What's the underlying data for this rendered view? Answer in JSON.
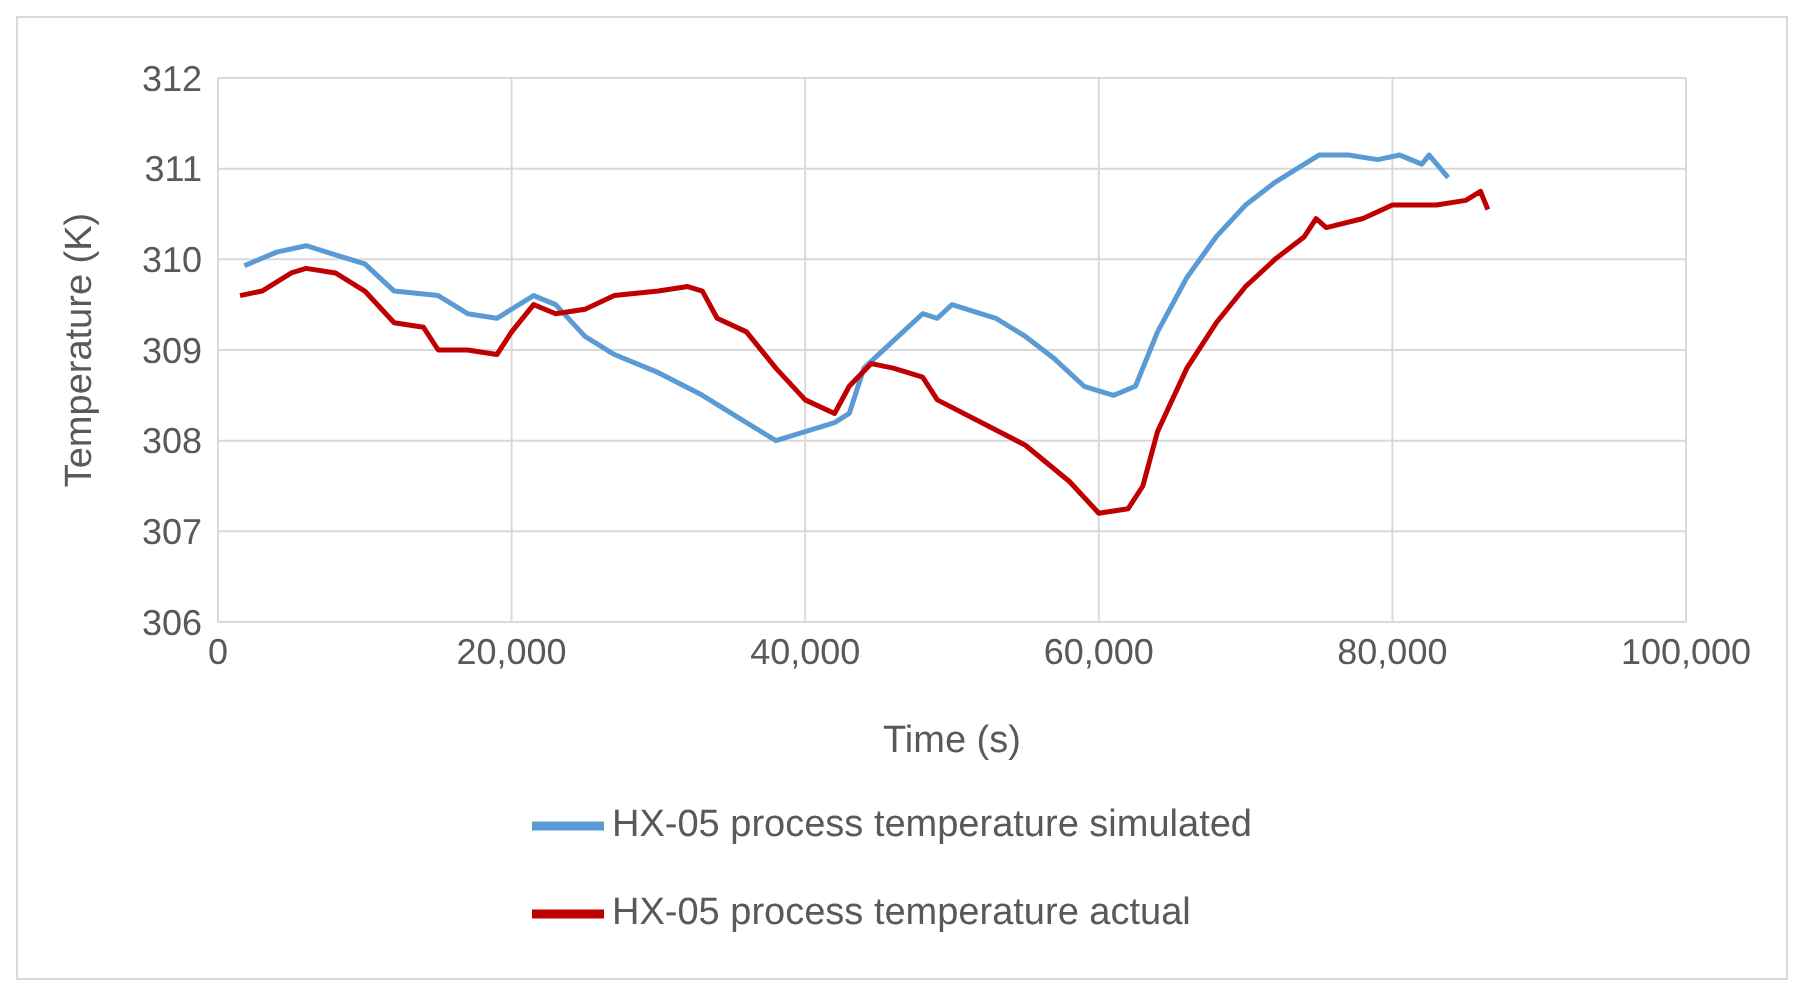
{
  "chart_data": {
    "type": "line",
    "xlabel": "Time (s)",
    "ylabel": "Temperature (K)",
    "xlim": [
      0,
      100000
    ],
    "xticks": [
      {
        "value": 0,
        "label": "0"
      },
      {
        "value": 20000,
        "label": "20,000"
      },
      {
        "value": 40000,
        "label": "40,000"
      },
      {
        "value": 60000,
        "label": "60,000"
      },
      {
        "value": 80000,
        "label": "80,000"
      },
      {
        "value": 100000,
        "label": "100,000"
      }
    ],
    "ylim": [
      306,
      312
    ],
    "yticks": [
      306,
      307,
      308,
      309,
      310,
      311,
      312
    ],
    "grid": true,
    "legend": "bottom",
    "marker": "none",
    "line_style": "solid",
    "series": [
      {
        "name": "HX-05 process temperature simulated",
        "color": "#5b9bd5",
        "x": [
          1800,
          4000,
          6000,
          8000,
          10000,
          12000,
          15000,
          17000,
          19000,
          21500,
          23000,
          25000,
          27000,
          30000,
          33000,
          36000,
          38000,
          40000,
          42000,
          43000,
          44000,
          46000,
          48000,
          49000,
          50000,
          53000,
          55000,
          57000,
          59000,
          61000,
          62500,
          64000,
          66000,
          68000,
          70000,
          72000,
          74000,
          75000,
          77000,
          79000,
          80500,
          82000,
          82500,
          83800
        ],
        "values": [
          309.93,
          310.08,
          310.15,
          310.05,
          309.95,
          309.65,
          309.6,
          309.4,
          309.35,
          309.6,
          309.5,
          309.15,
          308.95,
          308.75,
          308.5,
          308.2,
          308.0,
          308.1,
          308.2,
          308.3,
          308.8,
          309.1,
          309.4,
          309.35,
          309.5,
          309.35,
          309.15,
          308.9,
          308.6,
          308.5,
          308.6,
          309.2,
          309.8,
          310.25,
          310.6,
          310.85,
          311.05,
          311.15,
          311.15,
          311.1,
          311.15,
          311.05,
          311.15,
          310.9
        ]
      },
      {
        "name": "HX-05 process temperature actual",
        "color": "#c00000",
        "x": [
          1500,
          3000,
          5000,
          6000,
          8000,
          10000,
          12000,
          14000,
          15000,
          17000,
          19000,
          20000,
          21500,
          23000,
          25000,
          27000,
          30000,
          32000,
          33000,
          34000,
          36000,
          38000,
          40000,
          42000,
          43000,
          44500,
          46000,
          48000,
          49000,
          52000,
          55000,
          58000,
          60000,
          62000,
          63000,
          64000,
          66000,
          68000,
          70000,
          72000,
          74000,
          74800,
          75500,
          78000,
          80000,
          83000,
          85000,
          86000,
          86500
        ],
        "values": [
          309.6,
          309.65,
          309.85,
          309.9,
          309.85,
          309.65,
          309.3,
          309.25,
          309.0,
          309.0,
          308.95,
          309.2,
          309.5,
          309.4,
          309.45,
          309.6,
          309.65,
          309.7,
          309.65,
          309.35,
          309.2,
          308.8,
          308.45,
          308.3,
          308.6,
          308.85,
          308.8,
          308.7,
          308.45,
          308.2,
          307.95,
          307.55,
          307.2,
          307.25,
          307.5,
          308.1,
          308.8,
          309.3,
          309.7,
          310.0,
          310.25,
          310.45,
          310.35,
          310.45,
          310.6,
          310.6,
          310.65,
          310.75,
          310.55
        ]
      }
    ]
  }
}
